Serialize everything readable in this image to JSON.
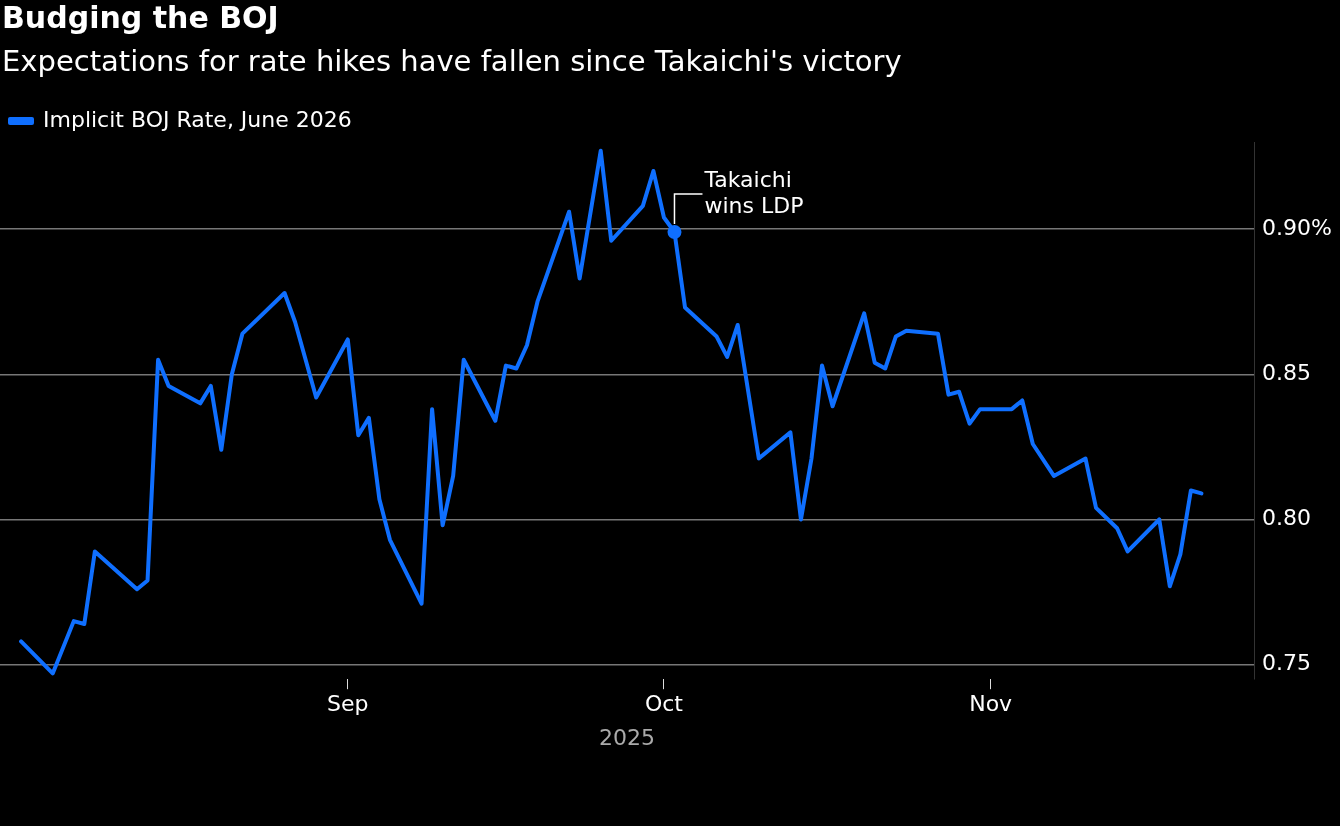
{
  "chart_data": {
    "type": "line",
    "title": "Budging the BOJ",
    "subtitle": "Expectations for rate hikes have fallen since Takaichi's victory",
    "xlabel": "2025",
    "x": [
      "2025-08-01",
      "2025-08-04",
      "2025-08-06",
      "2025-08-07",
      "2025-08-08",
      "2025-08-12",
      "2025-08-13",
      "2025-08-14",
      "2025-08-15",
      "2025-08-18",
      "2025-08-19",
      "2025-08-20",
      "2025-08-21",
      "2025-08-22",
      "2025-08-26",
      "2025-08-27",
      "2025-08-29",
      "2025-09-01",
      "2025-09-02",
      "2025-09-03",
      "2025-09-04",
      "2025-09-05",
      "2025-09-08",
      "2025-09-09",
      "2025-09-10",
      "2025-09-11",
      "2025-09-12",
      "2025-09-15",
      "2025-09-16",
      "2025-09-17",
      "2025-09-18",
      "2025-09-19",
      "2025-09-22",
      "2025-09-23",
      "2025-09-25",
      "2025-09-26",
      "2025-09-29",
      "2025-09-30",
      "2025-10-01",
      "2025-10-02",
      "2025-10-03",
      "2025-10-06",
      "2025-10-07",
      "2025-10-08",
      "2025-10-10",
      "2025-10-13",
      "2025-10-14",
      "2025-10-15",
      "2025-10-16",
      "2025-10-17",
      "2025-10-20",
      "2025-10-21",
      "2025-10-22",
      "2025-10-23",
      "2025-10-24",
      "2025-10-27",
      "2025-10-28",
      "2025-10-29",
      "2025-10-30",
      "2025-10-31",
      "2025-11-03",
      "2025-11-04",
      "2025-11-05",
      "2025-11-07",
      "2025-11-10",
      "2025-11-11",
      "2025-11-13",
      "2025-11-14",
      "2025-11-17",
      "2025-11-18",
      "2025-11-19",
      "2025-11-20",
      "2025-11-21"
    ],
    "series": [
      {
        "name": "Implicit BOJ Rate, June 2026",
        "color": "#0f6fff",
        "values": [
          0.758,
          0.747,
          0.765,
          0.764,
          0.789,
          0.776,
          0.779,
          0.855,
          0.846,
          0.84,
          0.846,
          0.824,
          0.85,
          0.864,
          0.878,
          0.868,
          0.842,
          0.862,
          0.829,
          0.835,
          0.807,
          0.793,
          0.771,
          0.838,
          0.798,
          0.815,
          0.855,
          0.834,
          0.853,
          0.852,
          0.86,
          0.875,
          0.906,
          0.883,
          0.927,
          0.896,
          0.908,
          0.92,
          0.904,
          0.899,
          0.873,
          0.863,
          0.856,
          0.867,
          0.821,
          0.83,
          0.8,
          0.821,
          0.853,
          0.839,
          0.871,
          0.854,
          0.852,
          0.863,
          0.865,
          0.864,
          0.843,
          0.844,
          0.833,
          0.838,
          0.838,
          0.841,
          0.826,
          0.815,
          0.821,
          0.804,
          0.797,
          0.789,
          0.8,
          0.777,
          0.788,
          0.81,
          0.809
        ]
      }
    ],
    "xlim": [
      "2025-07-30",
      "2025-11-26"
    ],
    "xticks": [
      {
        "value": "2025-09-01",
        "label": "Sep"
      },
      {
        "value": "2025-10-01",
        "label": "Oct"
      },
      {
        "value": "2025-11-01",
        "label": "Nov"
      }
    ],
    "ylim": [
      0.745,
      0.93
    ],
    "yticks": [
      0.75,
      {
        "value": 0.8,
        "label": "0.80"
      },
      0.85,
      {
        "value": 0.9,
        "label": "0.90%"
      }
    ],
    "annotations": [
      {
        "text": "Takaichi wins LDP",
        "x": "2025-10-02",
        "y": 0.899
      }
    ],
    "grid": "y",
    "legend": "top left",
    "marker": "none",
    "line_style": "solid"
  }
}
